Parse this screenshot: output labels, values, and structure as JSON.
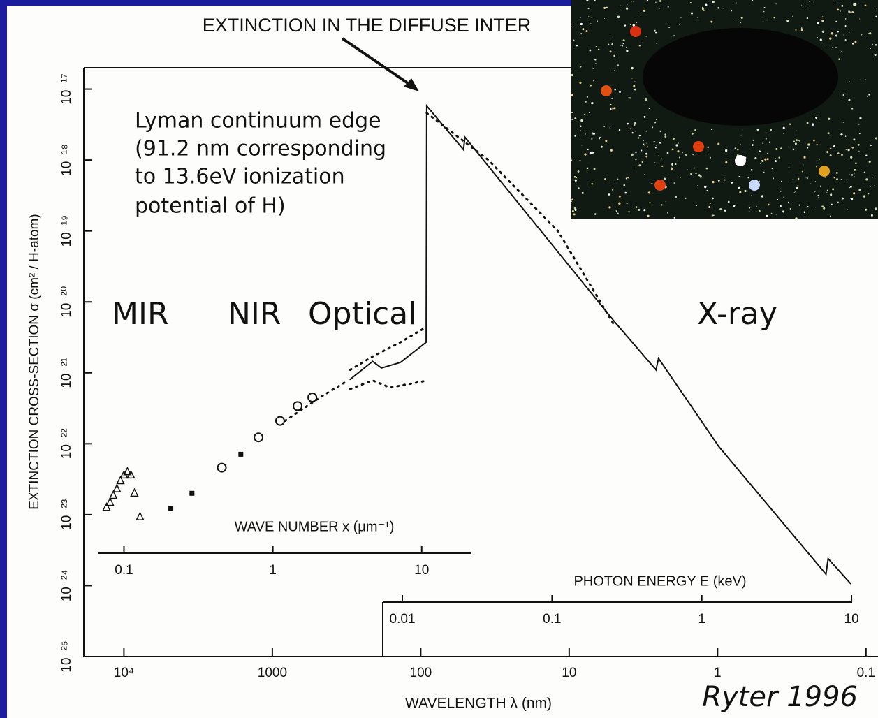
{
  "chart_data": {
    "type": "line",
    "title": "EXTINCTION IN THE DIFFUSE INTER",
    "y_label": "EXTINCTION CROSS-SECTION σ (cm² / H-atom)",
    "x_label": "WAVELENGTH λ (nm)",
    "log_x": true,
    "log_y": true,
    "xlim": [
      15000,
      0.083
    ],
    "ylim": [
      1e-25,
      2e-17
    ],
    "xticks": [
      {
        "value": 10000,
        "label": "10⁴"
      },
      1000,
      100,
      10,
      1,
      0.1
    ],
    "yticks": [
      {
        "value": 1e-17,
        "label": "10⁻¹⁷"
      },
      {
        "value": 1e-18,
        "label": "10⁻¹⁸"
      },
      {
        "value": 1e-19,
        "label": "10⁻¹⁹"
      },
      {
        "value": 1e-20,
        "label": "10⁻²⁰"
      },
      {
        "value": 1e-21,
        "label": "10⁻²¹"
      },
      {
        "value": 1e-22,
        "label": "10⁻²²"
      },
      {
        "value": 1e-23,
        "label": "10⁻²³"
      },
      {
        "value": 1e-24,
        "label": "10⁻²⁴"
      },
      {
        "value": 1e-25,
        "label": "10⁻²⁵"
      }
    ],
    "wavenumber_axis": {
      "label": "WAVE NUMBER x (μm⁻¹)",
      "xlim": [
        0.0667,
        21.6
      ],
      "xticks": [
        0.1,
        1,
        10
      ]
    },
    "energy_axis": {
      "label": "PHOTON ENERGY E (keV)",
      "xlim": [
        0.0074,
        10.1
      ],
      "xticks": [
        0.01,
        0.1,
        1,
        10
      ]
    },
    "series": [
      {
        "marker": "solid",
        "color": "#111111",
        "x": [
          299,
          211,
          184,
          137,
          92,
          91.2,
          51.5,
          50.4,
          5.0,
          2.6,
          2.5,
          0.98,
          0.186,
          0.18,
          0.127
        ],
        "values": [
          8.1e-22,
          1.45e-21,
          1.17e-21,
          1.4e-21,
          2.7e-21,
          5.8e-18,
          1.4e-18,
          2.1e-18,
          5.4e-21,
          1.1e-21,
          1.6e-21,
          9.1e-23,
          1.45e-24,
          2.4e-24,
          1.07e-24
        ]
      },
      {
        "marker": "dotted",
        "color": "#111111",
        "x": [
          91.2,
          35,
          11.9,
          5.0
        ],
        "values": [
          4.6e-18,
          1e-18,
          1e-19,
          4.8e-21
        ]
      },
      {
        "marker": "dotted",
        "color": "#111111",
        "x": [
          822,
          478,
          309
        ],
        "values": [
          2.1e-22,
          4.5e-22,
          7.8e-22
        ]
      },
      {
        "marker": "dotted",
        "color": "#111111",
        "x": [
          299,
          211,
          137,
          94
        ],
        "values": [
          1.1e-21,
          1.7e-21,
          2.7e-21,
          4.3e-21
        ]
      },
      {
        "marker": "dotted",
        "color": "#111111",
        "x": [
          299,
          211,
          161,
          96
        ],
        "values": [
          5.9e-22,
          7.8e-22,
          6.2e-22,
          7.6e-22
        ]
      },
      {
        "marker": "triangle",
        "color": "#111111",
        "x": [
          13100,
          12400,
          11800,
          11150,
          10550,
          10000,
          9470,
          8970,
          8500,
          7790
        ],
        "values": [
          1.26e-23,
          1.48e-23,
          1.86e-23,
          2.3e-23,
          3e-23,
          3.6e-23,
          4e-23,
          3.6e-23,
          2e-23,
          9.3e-24
        ]
      },
      {
        "marker": "square",
        "color": "#111111",
        "x": [
          4830,
          3480,
          1630
        ],
        "values": [
          1.23e-23,
          2e-23,
          7.1e-23
        ]
      },
      {
        "marker": "circle",
        "color": "#111111",
        "x": [
          2190,
          1240,
          887,
          676,
          538
        ],
        "values": [
          4.6e-23,
          1.23e-22,
          2.1e-22,
          3.4e-22,
          4.5e-22
        ]
      }
    ],
    "annotation": [
      "Lyman continuum edge",
      "(91.2 nm corresponding",
      "to 13.6eV ionization",
      "potential of H)"
    ],
    "regions": [
      "MIR",
      "NIR",
      "Optical",
      "X-ray"
    ],
    "credit": "Ryter 1996"
  }
}
